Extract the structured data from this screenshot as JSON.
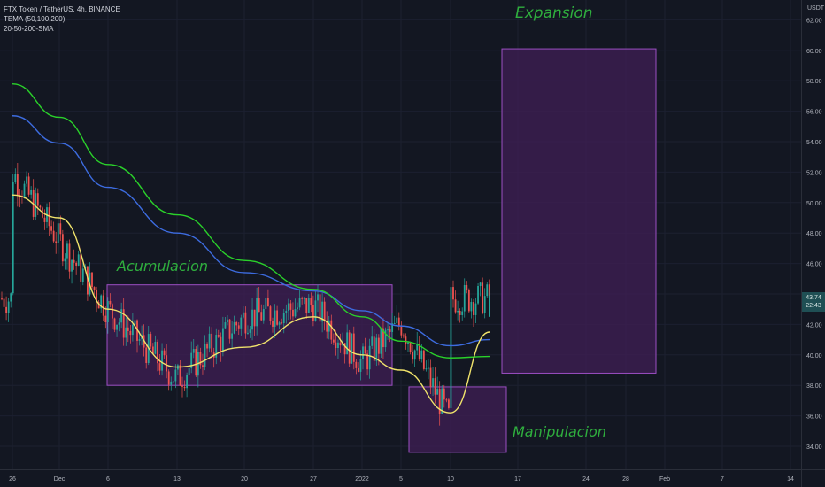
{
  "legend": {
    "symbol": "FTX Token / TetherUS, 4h, BINANCE",
    "ind1": "TEMA (50,100,200)",
    "ind2": "20-50-200-SMA"
  },
  "annotations": {
    "expansion": "Expansion",
    "acumulacion": "Acumulacion",
    "manipulacion": "Manipulacion"
  },
  "price_badge": {
    "price": "43.74",
    "time": "22:43"
  },
  "colors": {
    "background": "#131722",
    "up": "#26a69a",
    "down": "#ef5350",
    "sma_fast": "#f0e36b",
    "ema_mid": "#3d6ce0",
    "ema_slow": "#2ad12a",
    "box_fill": "#3d1e52",
    "box_stroke": "#9c4fc3",
    "annotation": "#2fae3e"
  },
  "chart_data": {
    "type": "candlestick",
    "unit": "USDT",
    "y_ticks": [
      "34.00",
      "36.00",
      "38.00",
      "40.00",
      "42.00",
      "44.00",
      "46.00",
      "48.00",
      "50.00",
      "52.00",
      "54.00",
      "56.00",
      "58.00",
      "60.00",
      "62.00"
    ],
    "x_ticks": [
      "26",
      "Dec",
      "6",
      "13",
      "20",
      "27",
      "2022",
      "5",
      "10",
      "17",
      "24",
      "28",
      "Feb",
      "7",
      "14"
    ],
    "current_price": 43.74,
    "ylim": [
      33.2,
      63.6
    ],
    "series": [
      {
        "name": "TEMA 200",
        "color": "#3d6ce0",
        "points": [
          [
            "26",
            55.7
          ],
          [
            "Dec",
            53.9
          ],
          [
            "6",
            51.0
          ],
          [
            "13",
            48.0
          ],
          [
            "20",
            45.4
          ],
          [
            "27",
            44.2
          ],
          [
            "2022",
            42.9
          ],
          [
            "5",
            41.9
          ],
          [
            "10",
            40.6
          ],
          [
            "13",
            41.0
          ]
        ]
      },
      {
        "name": "SMA 50",
        "color": "#2ad12a",
        "points": [
          [
            "26",
            57.8
          ],
          [
            "Dec",
            55.6
          ],
          [
            "6",
            52.5
          ],
          [
            "13",
            49.2
          ],
          [
            "20",
            46.2
          ],
          [
            "27",
            44.3
          ],
          [
            "2022",
            42.5
          ],
          [
            "5",
            40.9
          ],
          [
            "10",
            39.8
          ],
          [
            "13",
            39.9
          ]
        ]
      },
      {
        "name": "SMA 20",
        "color": "#f0e36b",
        "points": [
          [
            "26",
            50.5
          ],
          [
            "Dec",
            49.0
          ],
          [
            "6",
            43.0
          ],
          [
            "13",
            39.2
          ],
          [
            "20",
            40.5
          ],
          [
            "27",
            42.5
          ],
          [
            "2022",
            40.0
          ],
          [
            "5",
            39.0
          ],
          [
            "10",
            36.2
          ],
          [
            "13",
            41.5
          ]
        ]
      }
    ],
    "boxes": [
      {
        "label": "Acumulacion",
        "x_from": "6",
        "x_to": "5",
        "y_from": 38.0,
        "y_to": 44.6
      },
      {
        "label": "Manipulacion",
        "x_from": "5",
        "x_to": "17",
        "y_from": 33.6,
        "y_to": 37.9
      },
      {
        "label": "Expansion",
        "x_from": "17",
        "x_to": "28",
        "y_from": 38.8,
        "y_to": 60.1
      }
    ],
    "price_path": [
      [
        "26",
        52.0
      ],
      [
        "Dec",
        47.5
      ],
      [
        "6",
        43.0
      ],
      [
        "13",
        38.4
      ],
      [
        "20",
        42.5
      ],
      [
        "27",
        43.3
      ],
      [
        "2022",
        39.5
      ],
      [
        "5",
        42.1
      ],
      [
        "10",
        35.6
      ],
      [
        "13",
        43.7
      ]
    ]
  }
}
